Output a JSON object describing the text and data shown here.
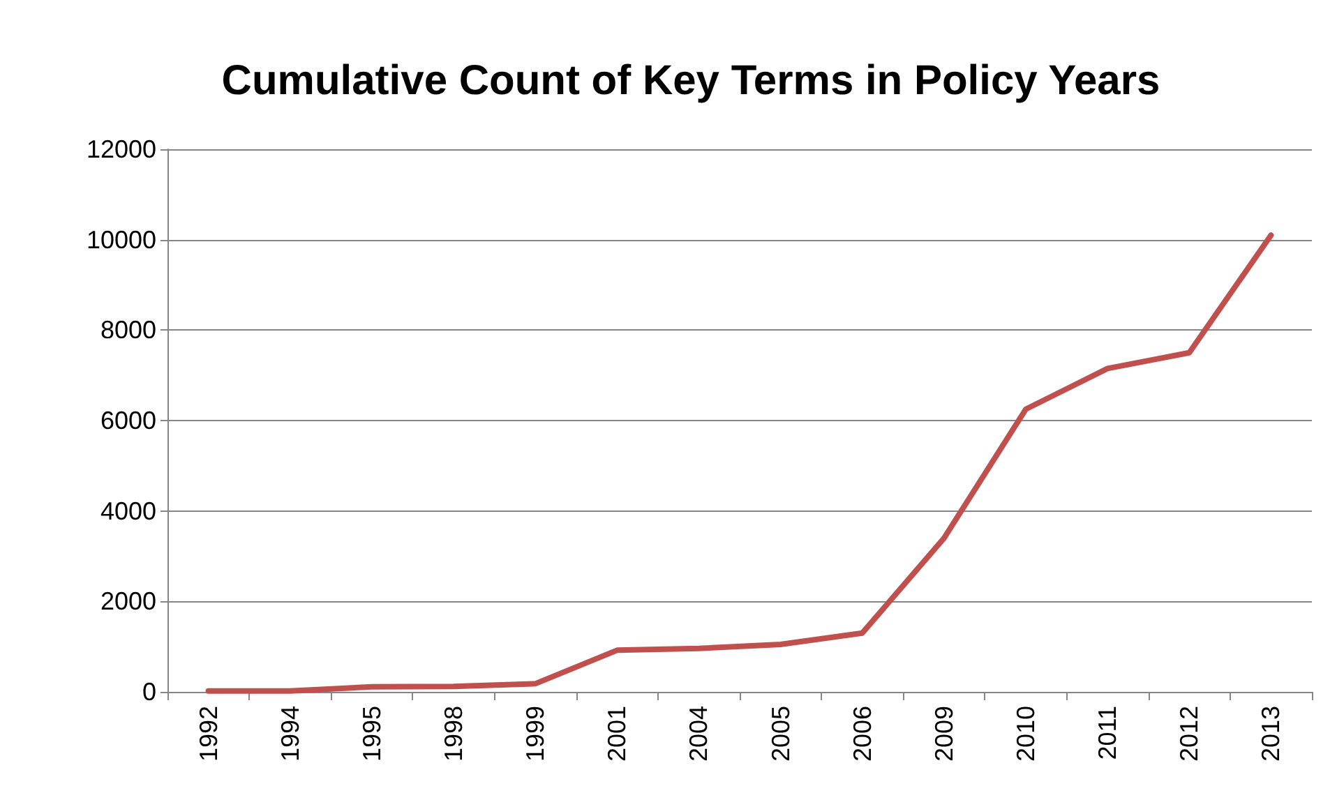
{
  "chart_data": {
    "type": "line",
    "title": "Cumulative Count of Key Terms in Policy Years",
    "categories": [
      "1992",
      "1994",
      "1995",
      "1998",
      "1999",
      "2001",
      "2004",
      "2005",
      "2006",
      "2009",
      "2010",
      "2011",
      "2012",
      "2013"
    ],
    "series": [
      {
        "color": "#c0504d",
        "values": [
          20,
          20,
          110,
          120,
          180,
          920,
          960,
          1050,
          1300,
          3400,
          6250,
          7150,
          7500,
          10100
        ]
      }
    ],
    "ylim": [
      0,
      12000
    ],
    "yticks": [
      0,
      2000,
      4000,
      6000,
      8000,
      10000,
      12000
    ],
    "grid": "y",
    "marker": "none",
    "line_style": "solid"
  }
}
